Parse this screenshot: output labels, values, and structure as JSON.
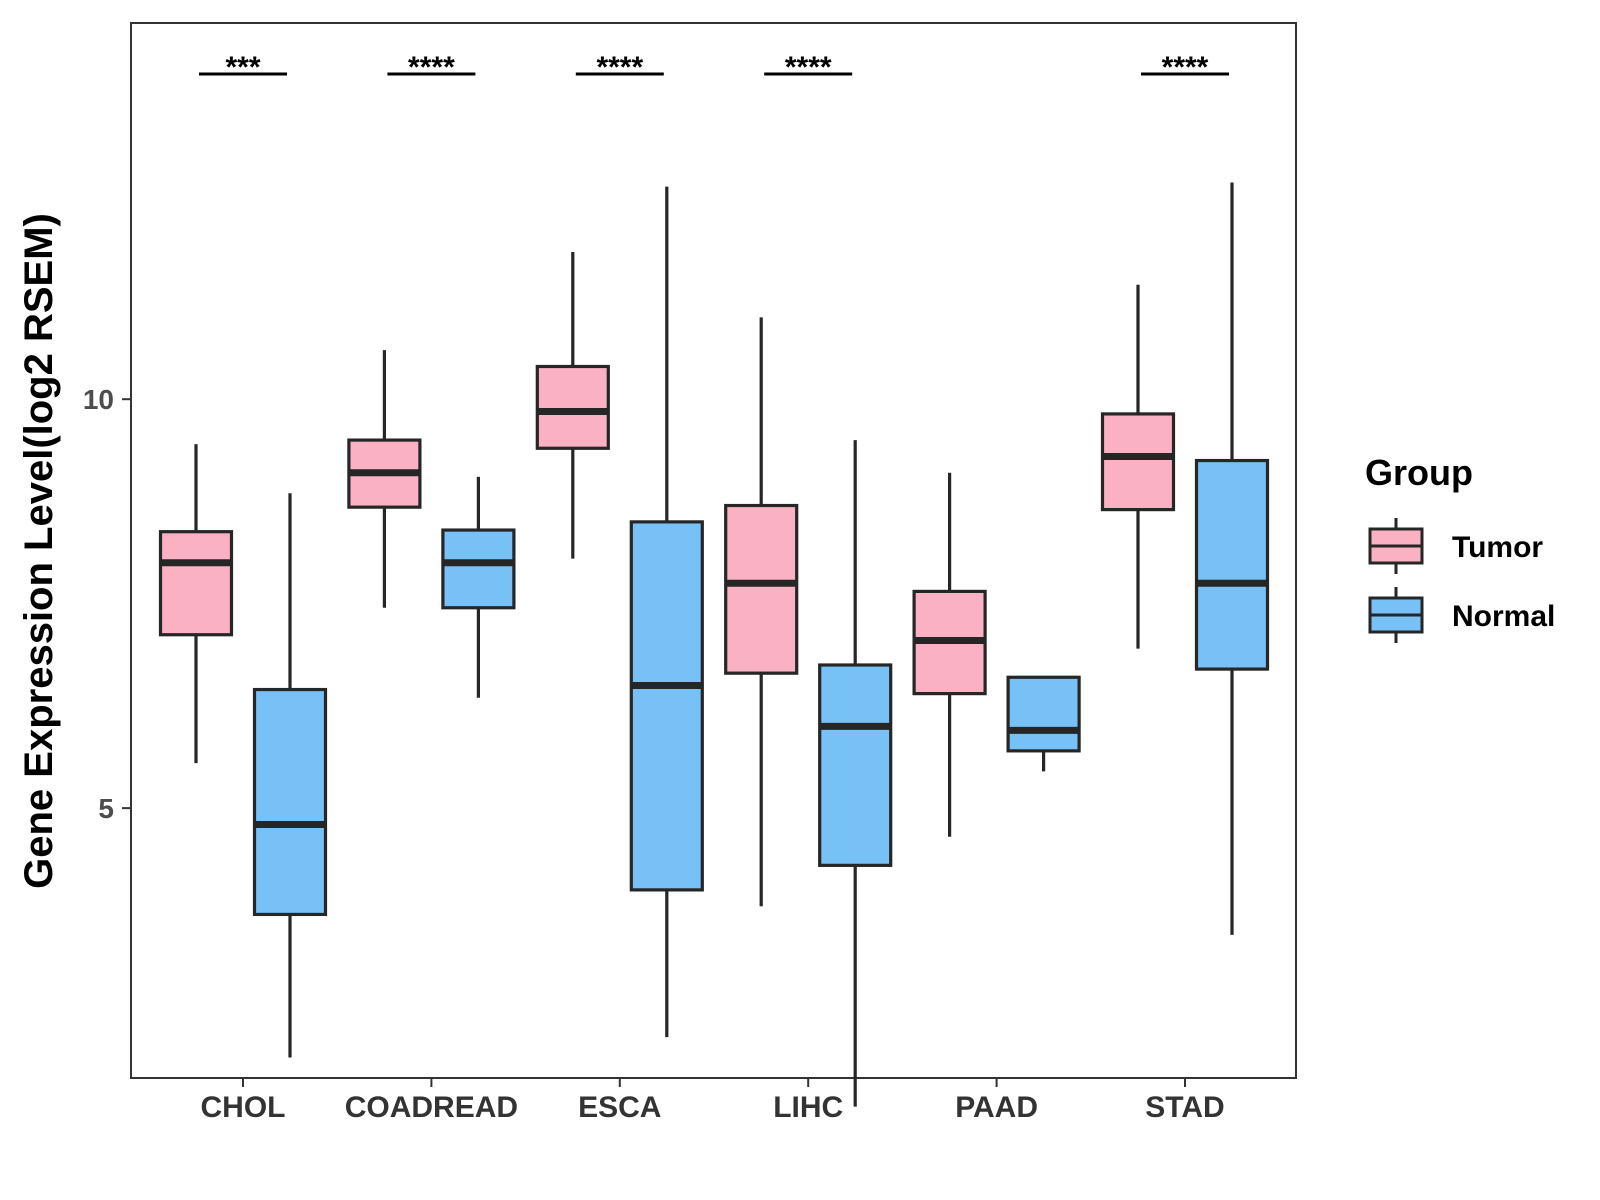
{
  "chart_data": {
    "type": "boxplot",
    "title": "",
    "xlabel": "",
    "ylabel": "Gene Expression Level(log2 RSEM)",
    "ylim": [
      1.7,
      14.6
    ],
    "yticks": [
      5,
      10
    ],
    "categories": [
      "CHOL",
      "COADREAD",
      "ESCA",
      "LIHC",
      "PAAD",
      "STAD"
    ],
    "series": [
      {
        "name": "Tumor",
        "color": "#FBB1C4",
        "boxes": [
          {
            "category": "CHOL",
            "min": 5.55,
            "q1": 7.12,
            "median": 8.0,
            "q3": 8.38,
            "max": 9.45
          },
          {
            "category": "COADREAD",
            "min": 7.45,
            "q1": 8.68,
            "median": 9.1,
            "q3": 9.5,
            "max": 10.6
          },
          {
            "category": "ESCA",
            "min": 8.05,
            "q1": 9.4,
            "median": 9.85,
            "q3": 10.4,
            "max": 11.8
          },
          {
            "category": "LIHC",
            "min": 3.8,
            "q1": 6.65,
            "median": 7.75,
            "q3": 8.7,
            "max": 11.0
          },
          {
            "category": "PAAD",
            "min": 4.65,
            "q1": 6.4,
            "median": 7.05,
            "q3": 7.65,
            "max": 9.1
          },
          {
            "category": "STAD",
            "min": 6.95,
            "q1": 8.65,
            "median": 9.3,
            "q3": 9.82,
            "max": 11.4
          }
        ]
      },
      {
        "name": "Normal",
        "color": "#77C1F7",
        "boxes": [
          {
            "category": "CHOL",
            "min": 1.95,
            "q1": 3.7,
            "median": 4.8,
            "q3": 6.45,
            "max": 8.85
          },
          {
            "category": "COADREAD",
            "min": 6.35,
            "q1": 7.45,
            "median": 8.0,
            "q3": 8.4,
            "max": 9.05
          },
          {
            "category": "ESCA",
            "min": 2.2,
            "q1": 4.0,
            "median": 6.5,
            "q3": 8.5,
            "max": 12.6
          },
          {
            "category": "LIHC",
            "min": 1.35,
            "q1": 4.3,
            "median": 6.0,
            "q3": 6.75,
            "max": 9.5
          },
          {
            "category": "PAAD",
            "min": 5.45,
            "q1": 5.7,
            "median": 5.95,
            "q3": 6.6,
            "max": 6.6
          },
          {
            "category": "STAD",
            "min": 3.45,
            "q1": 6.7,
            "median": 7.75,
            "q3": 9.25,
            "max": 12.65
          }
        ]
      }
    ],
    "significance": [
      {
        "category": "CHOL",
        "label": "***"
      },
      {
        "category": "COADREAD",
        "label": "****"
      },
      {
        "category": "ESCA",
        "label": "****"
      },
      {
        "category": "LIHC",
        "label": "****"
      },
      {
        "category": "PAAD",
        "label": ""
      },
      {
        "category": "STAD",
        "label": "****"
      }
    ],
    "legend": {
      "title": "Group",
      "position": "right",
      "items": [
        {
          "label": "Tumor",
          "color": "#FBB1C4"
        },
        {
          "label": "Normal",
          "color": "#77C1F7"
        }
      ]
    },
    "grid": false
  }
}
